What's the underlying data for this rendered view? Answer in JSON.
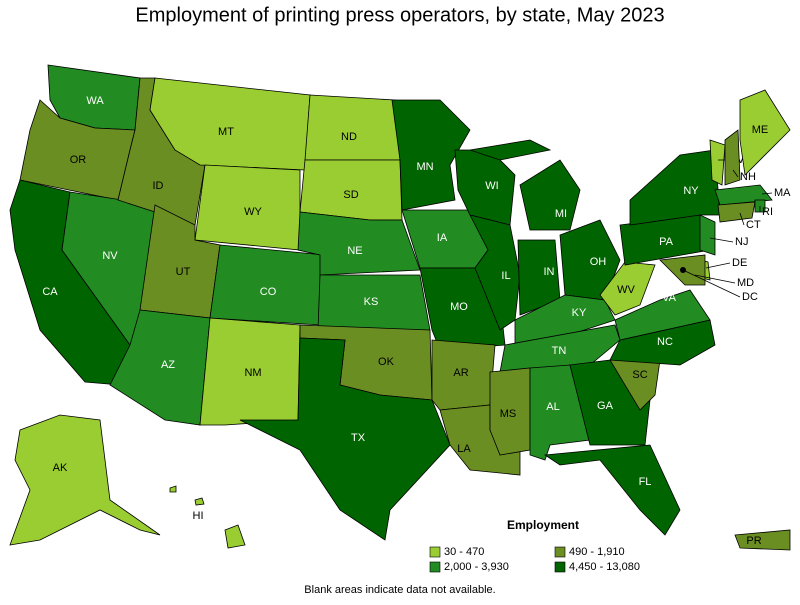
{
  "title": "Employment of printing press operators, by state, May 2023",
  "legend": {
    "title": "Employment",
    "items": [
      {
        "label": "30 - 470",
        "color": "#9acd32"
      },
      {
        "label": "490 - 1,910",
        "color": "#6b8e23"
      },
      {
        "label": "2,000 - 3,930",
        "color": "#228b22"
      },
      {
        "label": "4,450 - 13,080",
        "color": "#006400"
      }
    ]
  },
  "note": "Blank areas indicate data not available.",
  "states": [
    {
      "label": "WA",
      "color": "#228b22"
    },
    {
      "label": "OR",
      "color": "#6b8e23"
    },
    {
      "label": "CA",
      "color": "#006400"
    },
    {
      "label": "NV",
      "color": "#228b22"
    },
    {
      "label": "ID",
      "color": "#6b8e23"
    },
    {
      "label": "MT",
      "color": "#9acd32"
    },
    {
      "label": "WY",
      "color": "#9acd32"
    },
    {
      "label": "UT",
      "color": "#6b8e23"
    },
    {
      "label": "AZ",
      "color": "#228b22"
    },
    {
      "label": "CO",
      "color": "#228b22"
    },
    {
      "label": "NM",
      "color": "#9acd32"
    },
    {
      "label": "ND",
      "color": "#9acd32"
    },
    {
      "label": "SD",
      "color": "#9acd32"
    },
    {
      "label": "NE",
      "color": "#228b22"
    },
    {
      "label": "KS",
      "color": "#228b22"
    },
    {
      "label": "OK",
      "color": "#6b8e23"
    },
    {
      "label": "TX",
      "color": "#006400"
    },
    {
      "label": "MN",
      "color": "#006400"
    },
    {
      "label": "IA",
      "color": "#228b22"
    },
    {
      "label": "MO",
      "color": "#006400"
    },
    {
      "label": "AR",
      "color": "#6b8e23"
    },
    {
      "label": "LA",
      "color": "#6b8e23"
    },
    {
      "label": "WI",
      "color": "#006400"
    },
    {
      "label": "IL",
      "color": "#006400"
    },
    {
      "label": "MI",
      "color": "#006400"
    },
    {
      "label": "IN",
      "color": "#006400"
    },
    {
      "label": "OH",
      "color": "#006400"
    },
    {
      "label": "KY",
      "color": "#228b22"
    },
    {
      "label": "TN",
      "color": "#228b22"
    },
    {
      "label": "MS",
      "color": "#6b8e23"
    },
    {
      "label": "AL",
      "color": "#228b22"
    },
    {
      "label": "GA",
      "color": "#006400"
    },
    {
      "label": "FL",
      "color": "#006400"
    },
    {
      "label": "SC",
      "color": "#6b8e23"
    },
    {
      "label": "NC",
      "color": "#006400"
    },
    {
      "label": "VA",
      "color": "#228b22"
    },
    {
      "label": "WV",
      "color": "#9acd32"
    },
    {
      "label": "PA",
      "color": "#006400"
    },
    {
      "label": "NY",
      "color": "#006400"
    },
    {
      "label": "VT",
      "color": "#9acd32"
    },
    {
      "label": "NH",
      "color": "#6b8e23"
    },
    {
      "label": "ME",
      "color": "#9acd32"
    },
    {
      "label": "MA",
      "color": "#228b22"
    },
    {
      "label": "RI",
      "color": "#228b22"
    },
    {
      "label": "CT",
      "color": "#6b8e23"
    },
    {
      "label": "NJ",
      "color": "#228b22"
    },
    {
      "label": "DE",
      "color": "#9acd32"
    },
    {
      "label": "MD",
      "color": "#6b8e23"
    },
    {
      "label": "DC",
      "color": "#006400"
    },
    {
      "label": "AK",
      "color": "#9acd32"
    },
    {
      "label": "HI",
      "color": "#9acd32"
    },
    {
      "label": "PR",
      "color": "#6b8e23"
    }
  ]
}
